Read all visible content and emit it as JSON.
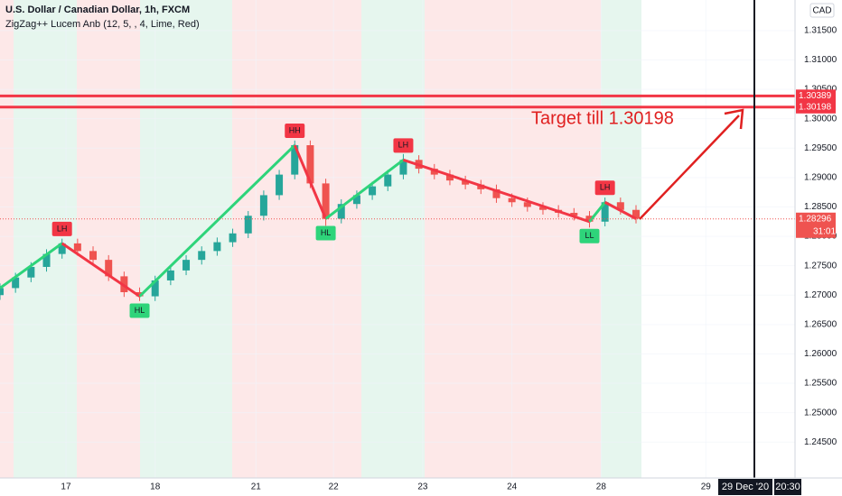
{
  "chart_data": {
    "type": "candlestick",
    "title": "U.S. Dollar / Canadian Dollar, 1h, FXCM",
    "subtitle": "ZigZag++ Lucem Anb (12, 5, , 4, Lime, Red)",
    "currency": "CAD",
    "x": [
      0,
      4,
      8,
      12,
      16,
      20,
      24,
      28,
      32,
      36,
      40,
      44,
      48,
      52,
      56,
      60,
      64,
      68,
      72,
      76,
      80,
      84,
      88,
      92,
      96,
      100,
      104,
      108,
      112,
      116,
      120,
      124,
      128,
      132,
      136,
      140,
      144,
      148,
      152,
      156,
      160,
      164
    ],
    "open": [
      1.27,
      1.2712,
      1.273,
      1.2748,
      1.277,
      1.2788,
      1.2775,
      1.276,
      1.2732,
      1.2705,
      1.2698,
      1.2725,
      1.2742,
      1.276,
      1.2775,
      1.279,
      1.2805,
      1.2835,
      1.287,
      1.2905,
      1.2955,
      1.289,
      1.283,
      1.2855,
      1.287,
      1.2885,
      1.2905,
      1.293,
      1.2915,
      1.2905,
      1.2895,
      1.2888,
      1.288,
      1.2865,
      1.2858,
      1.285,
      1.2845,
      1.284,
      1.2835,
      1.2825,
      1.2858,
      1.2845
    ],
    "high": [
      1.272,
      1.2738,
      1.2756,
      1.2778,
      1.2796,
      1.2796,
      1.2783,
      1.2768,
      1.274,
      1.2713,
      1.2733,
      1.275,
      1.2768,
      1.2783,
      1.2798,
      1.2813,
      1.2843,
      1.2878,
      1.2913,
      1.2963,
      1.2963,
      1.2898,
      1.2863,
      1.2878,
      1.2893,
      1.2913,
      1.294,
      1.2938,
      1.2923,
      1.2913,
      1.2903,
      1.2896,
      1.2888,
      1.2873,
      1.2866,
      1.2858,
      1.2853,
      1.2848,
      1.2843,
      1.2866,
      1.2866,
      1.2853
    ],
    "low": [
      1.2692,
      1.2704,
      1.2722,
      1.274,
      1.2762,
      1.2767,
      1.2752,
      1.2724,
      1.2697,
      1.269,
      1.269,
      1.2717,
      1.2734,
      1.2752,
      1.2767,
      1.2782,
      1.2797,
      1.2827,
      1.2862,
      1.2897,
      1.2882,
      1.2818,
      1.2822,
      1.2847,
      1.2862,
      1.2877,
      1.2897,
      1.2907,
      1.2897,
      1.2887,
      1.288,
      1.2872,
      1.2857,
      1.285,
      1.2842,
      1.2837,
      1.2832,
      1.2827,
      1.2815,
      1.2817,
      1.2837,
      1.2822
    ],
    "close": [
      1.2712,
      1.273,
      1.2748,
      1.277,
      1.2788,
      1.2775,
      1.276,
      1.2732,
      1.2705,
      1.2698,
      1.2725,
      1.2742,
      1.276,
      1.2775,
      1.279,
      1.2805,
      1.2835,
      1.287,
      1.2905,
      1.2955,
      1.289,
      1.283,
      1.2855,
      1.287,
      1.2885,
      1.2905,
      1.293,
      1.2915,
      1.2905,
      1.2895,
      1.2888,
      1.288,
      1.2865,
      1.2858,
      1.285,
      1.2845,
      1.284,
      1.2835,
      1.2825,
      1.2858,
      1.2845,
      1.283
    ],
    "up_color": "#26a69a",
    "down_color": "#ef5350",
    "xlim": [
      0,
      205
    ],
    "xticks": [
      {
        "value": 17,
        "label": "17"
      },
      {
        "value": 40,
        "label": "18"
      },
      {
        "value": 66,
        "label": "21"
      },
      {
        "value": 86,
        "label": "22"
      },
      {
        "value": 109,
        "label": "23"
      },
      {
        "value": 132,
        "label": "24"
      },
      {
        "value": 155,
        "label": "28"
      },
      {
        "value": 182,
        "label": "29"
      }
    ],
    "ylim": [
      1.2389,
      1.3202
    ],
    "yticks": [
      {
        "value": 1.245,
        "label": "1.24500"
      },
      {
        "value": 1.25,
        "label": "1.25000"
      },
      {
        "value": 1.255,
        "label": "1.25500"
      },
      {
        "value": 1.26,
        "label": "1.26000"
      },
      {
        "value": 1.265,
        "label": "1.26500"
      },
      {
        "value": 1.27,
        "label": "1.27000"
      },
      {
        "value": 1.275,
        "label": "1.27500"
      },
      {
        "value": 1.28,
        "label": "1.28000"
      },
      {
        "value": 1.285,
        "label": "1.28500"
      },
      {
        "value": 1.29,
        "label": "1.29000"
      },
      {
        "value": 1.295,
        "label": "1.29500"
      },
      {
        "value": 1.3,
        "label": "1.30000"
      },
      {
        "value": 1.305,
        "label": "1.30500"
      },
      {
        "value": 1.31,
        "label": "1.31000"
      },
      {
        "value": 1.315,
        "label": "1.31500"
      }
    ],
    "zigzag": {
      "x": [
        0,
        16,
        36,
        76,
        84,
        104,
        152,
        156,
        164
      ],
      "values": [
        1.2712,
        1.2788,
        1.2698,
        1.2955,
        1.283,
        1.293,
        1.2825,
        1.2858,
        1.283
      ],
      "labels": [
        null,
        "LH",
        "HL",
        "HH",
        "HL",
        "LH",
        "LL",
        "LH",
        null
      ],
      "up_color": "#2ed47a",
      "down_color": "#f23645"
    },
    "levels": [
      {
        "value": 1.30389,
        "color": "#f23645"
      },
      {
        "value": 1.30198,
        "color": "#f23645"
      }
    ],
    "last_price": 1.28296,
    "countdown": "31:01",
    "annotation": "Target till 1.30198",
    "crosshair": {
      "date": "29 Dec '20",
      "time": "20:30"
    }
  }
}
